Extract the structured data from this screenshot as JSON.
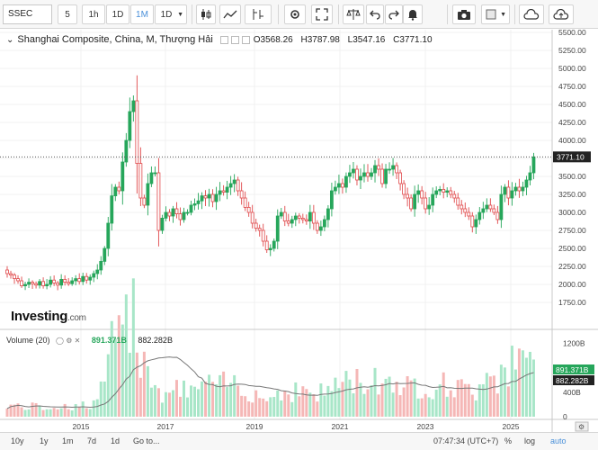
{
  "toolbar": {
    "symbol": "SSEC",
    "intervals": [
      "5",
      "1h",
      "1D",
      "1M",
      "1D"
    ],
    "active_interval": "1M"
  },
  "legend": {
    "title": "Shanghai Composite, China, M, Thượng Hải",
    "open": "O3568.26",
    "high": "H3787.98",
    "low": "L3547.16",
    "close": "C3771.10"
  },
  "price_axis": {
    "labels": [
      "5500.00",
      "5250.00",
      "5000.00",
      "4750.00",
      "4500.00",
      "4250.00",
      "4000.00",
      "3750.00",
      "3500.00",
      "3250.00",
      "3000.00",
      "2750.00",
      "2500.00",
      "2250.00",
      "2000.00",
      "1750.00"
    ],
    "current_label": "3771.10"
  },
  "volume": {
    "title": "Volume (20)",
    "value1": "891.371B",
    "value2": "882.282B",
    "axis_labels": [
      "1200B",
      "800B",
      "400B",
      "0"
    ]
  },
  "time_axis": {
    "labels": [
      "2015",
      "2017",
      "2019",
      "2021",
      "2023",
      "2025"
    ]
  },
  "logo": {
    "name": "Investing",
    "suffix": ".com"
  },
  "bottom": {
    "ranges": [
      "10y",
      "1y",
      "1m",
      "7d",
      "1d"
    ],
    "goto": "Go to...",
    "time": "07:47:34 (UTC+7)",
    "percent": "%",
    "log": "log",
    "auto": "auto"
  },
  "colors": {
    "up": "#26a65b",
    "down": "#e0484a",
    "vol_up": "#a8e6c8",
    "vol_down": "#f5b7b6",
    "accent": "#4a90d9"
  },
  "chart_data": {
    "type": "candlestick",
    "series": [
      {
        "name": "Shanghai Composite",
        "values": [
          2150,
          2130,
          2080,
          2050,
          1980,
          2000,
          2030,
          2010,
          1990,
          2040,
          1980,
          2000,
          2060,
          2020,
          1990,
          2070,
          2030,
          2010,
          2050,
          2080,
          2040,
          2110,
          2060,
          2100,
          2150,
          2200,
          2320,
          2500,
          2850,
          3230,
          3350,
          3300,
          3700,
          4000,
          4400,
          4550,
          3680,
          3200,
          3100,
          3400,
          3550,
          3550,
          2750,
          2920,
          3000,
          2950,
          3050,
          2980,
          2900,
          3000,
          3000,
          3100,
          3120,
          3160,
          3230,
          3200,
          3250,
          3150,
          3250,
          3300,
          3280,
          3350,
          3400,
          3450,
          3300,
          3200,
          3070,
          3000,
          2850,
          2780,
          2750,
          2600,
          2480,
          2500,
          2600,
          2950,
          3000,
          2880,
          2850,
          2900,
          2950,
          2920,
          2900,
          2880,
          3000,
          2850,
          2750,
          2800,
          2900,
          3050,
          3300,
          3350,
          3400,
          3350,
          3500,
          3550,
          3600,
          3450,
          3500,
          3550,
          3500,
          3550,
          3650,
          3600,
          3400,
          3600,
          3600,
          3650,
          3550,
          3400,
          3250,
          3200,
          3050,
          3250,
          3300,
          3200,
          3050,
          3100,
          3250,
          3300,
          3320,
          3280,
          3300,
          3250,
          3200,
          3100,
          3050,
          3000,
          2950,
          2800,
          2900,
          3000,
          3050,
          3100,
          3050,
          3000,
          2900,
          3250,
          3350,
          3200,
          3300,
          3350,
          3300,
          3350,
          3450,
          3550,
          3771
        ]
      }
    ],
    "x_ticks": [
      "2015",
      "2017",
      "2019",
      "2021",
      "2023",
      "2025"
    ],
    "ylim": [
      1750,
      5500
    ]
  }
}
